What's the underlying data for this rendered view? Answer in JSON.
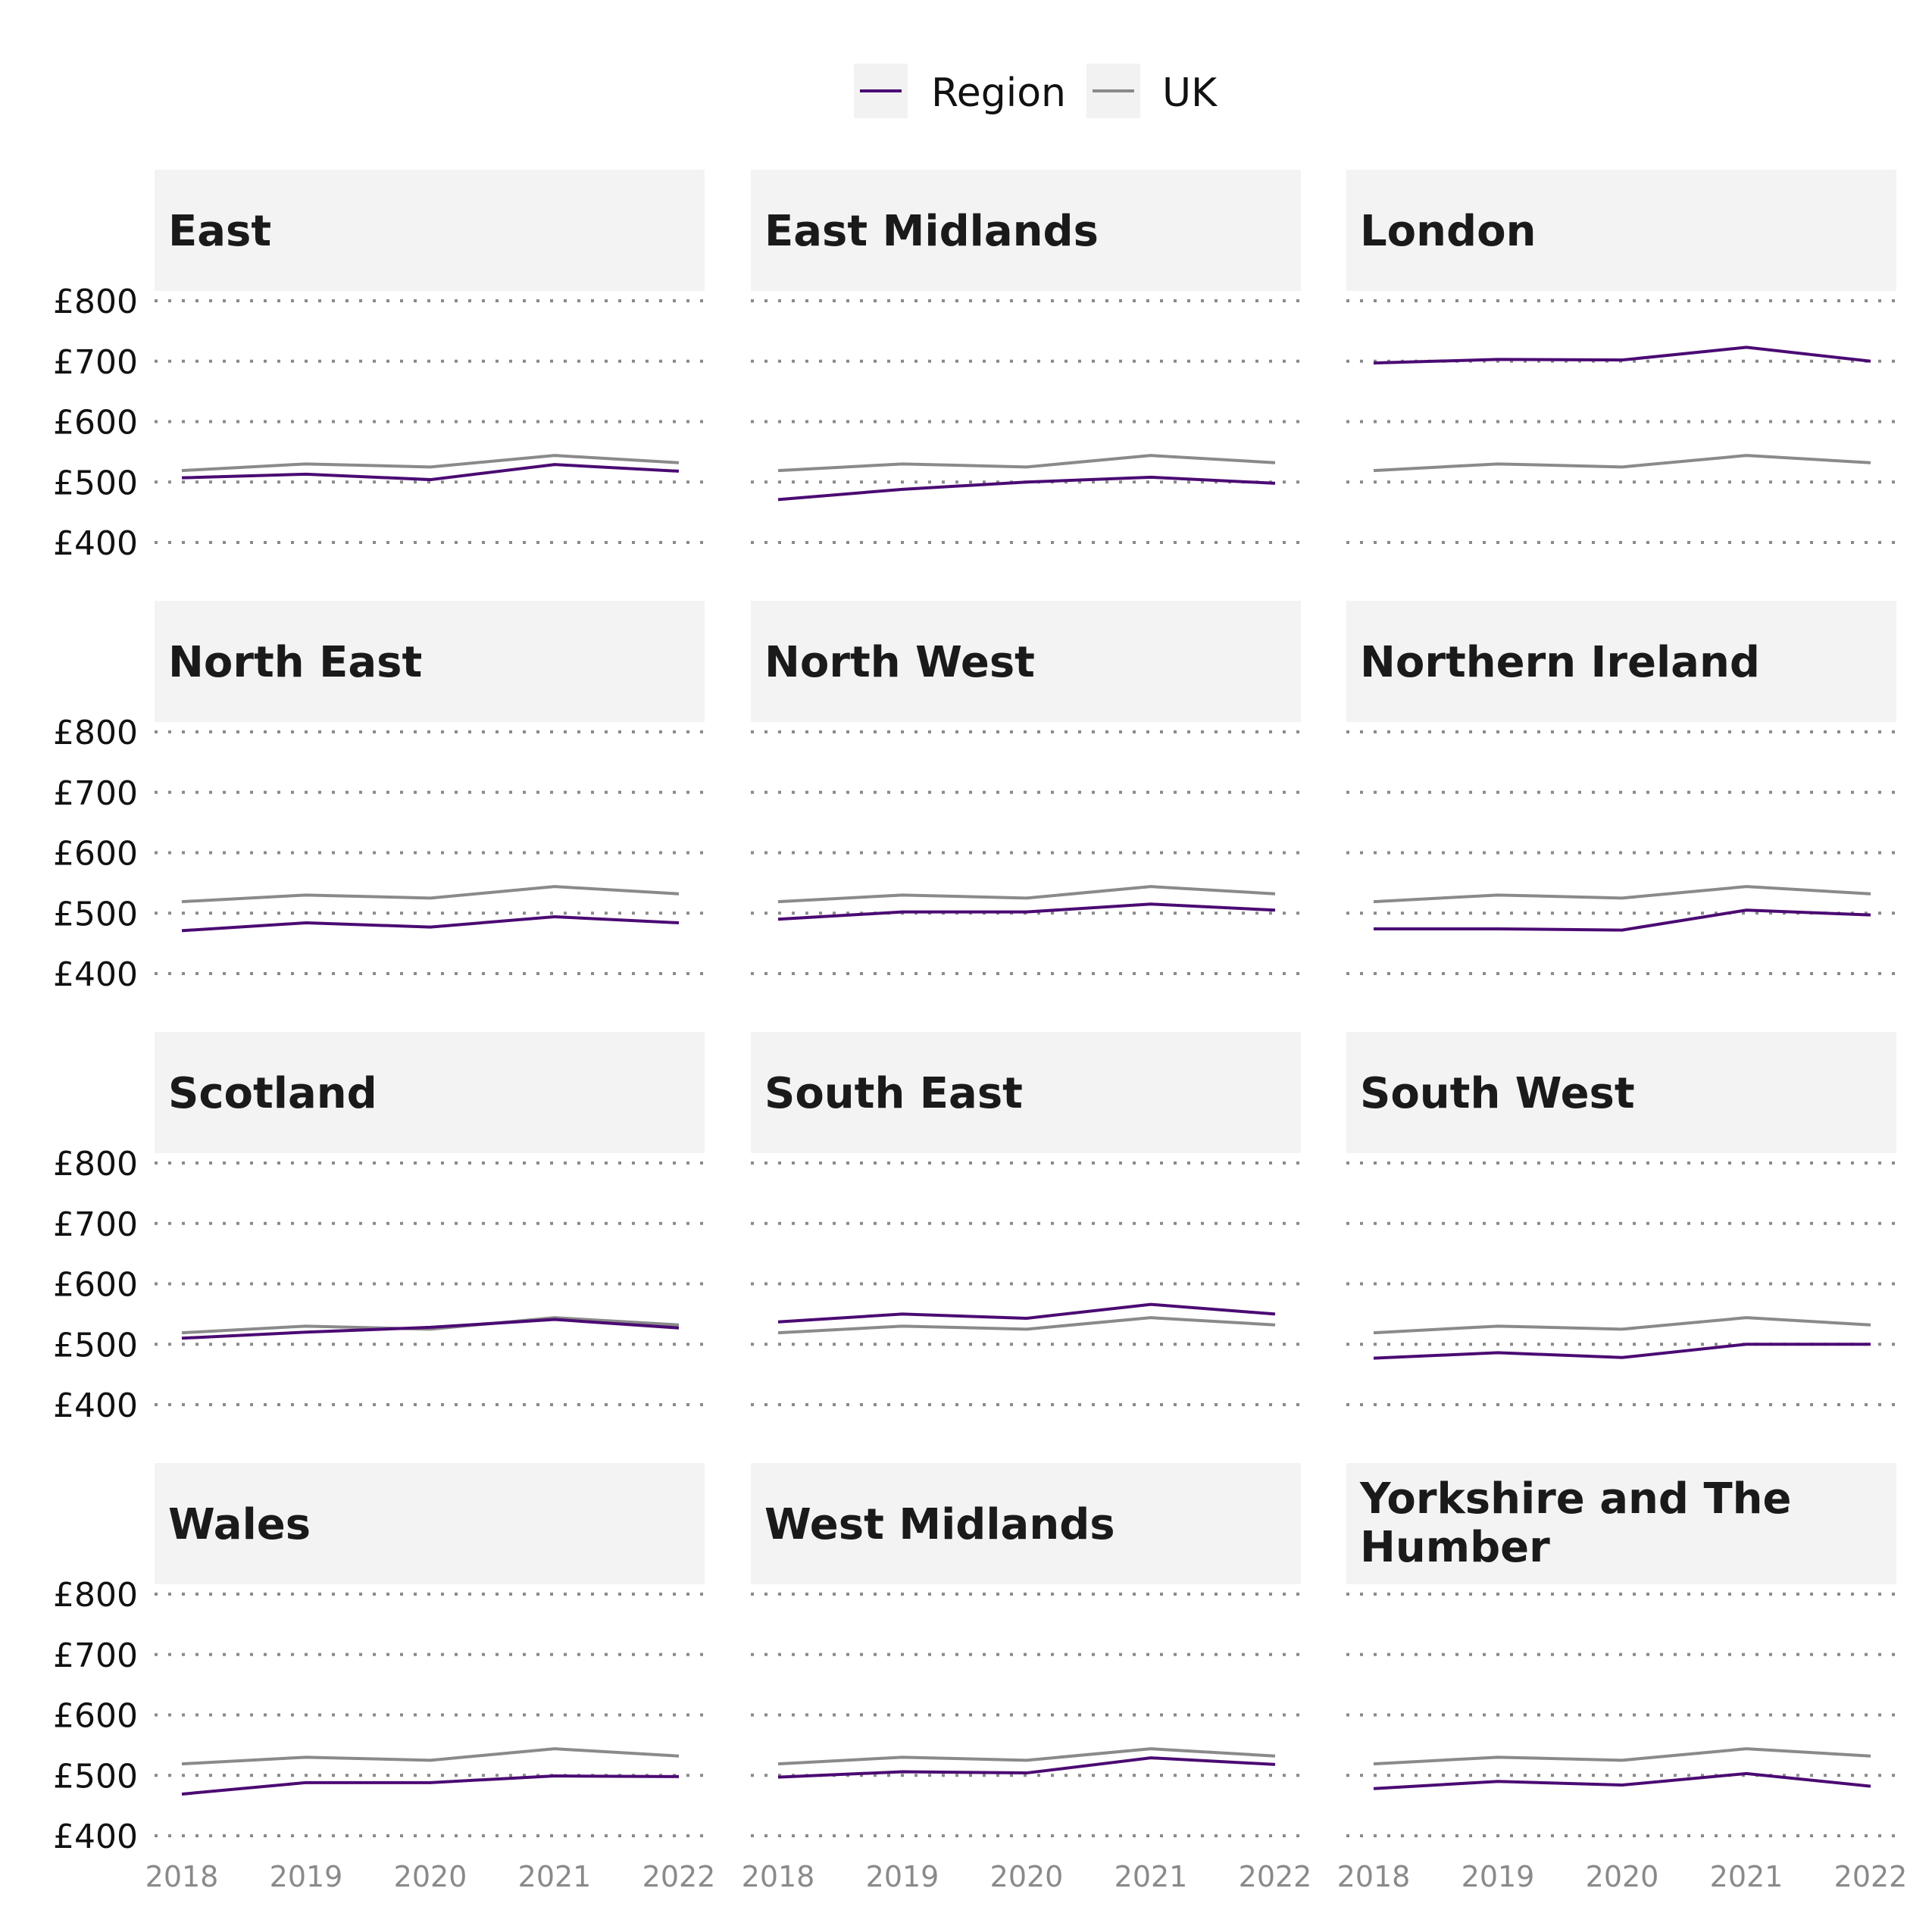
{
  "chart_data": {
    "type": "line",
    "layout": "facet-grid 4x3",
    "x": [
      "2018",
      "2019",
      "2020",
      "2021",
      "2022"
    ],
    "ylim": [
      400,
      800
    ],
    "y_ticks": [
      "£400",
      "£500",
      "£600",
      "£700",
      "£800"
    ],
    "y_tick_values": [
      400,
      500,
      600,
      700,
      800
    ],
    "grid": "horizontal dotted",
    "legend": {
      "placement": "top",
      "entries": [
        {
          "name": "Region",
          "color": "#4b0a73"
        },
        {
          "name": "UK",
          "color": "#8a8a8a"
        }
      ]
    },
    "uk_values": [
      519,
      530,
      525,
      544,
      532
    ],
    "panels": [
      {
        "title": "East",
        "values": [
          507,
          513,
          504,
          529,
          518
        ]
      },
      {
        "title": "East Midlands",
        "values": [
          471,
          488,
          500,
          508,
          498
        ]
      },
      {
        "title": "London",
        "values": [
          697,
          703,
          702,
          723,
          700
        ]
      },
      {
        "title": "North East",
        "values": [
          471,
          484,
          477,
          494,
          484
        ]
      },
      {
        "title": "North West",
        "values": [
          490,
          502,
          502,
          515,
          505
        ]
      },
      {
        "title": "Northern Ireland",
        "values": [
          474,
          474,
          472,
          505,
          497
        ]
      },
      {
        "title": "Scotland",
        "values": [
          510,
          520,
          528,
          541,
          527
        ]
      },
      {
        "title": "South East",
        "values": [
          537,
          550,
          543,
          566,
          550
        ]
      },
      {
        "title": "South West",
        "values": [
          477,
          486,
          478,
          500,
          500
        ]
      },
      {
        "title": "Wales",
        "values": [
          469,
          488,
          488,
          499,
          498
        ]
      },
      {
        "title": "West Midlands",
        "values": [
          497,
          506,
          504,
          529,
          518
        ]
      },
      {
        "title": "Yorkshire and The Humber",
        "title_lines": [
          "Yorkshire and The",
          "Humber"
        ],
        "values": [
          478,
          490,
          484,
          503,
          482
        ]
      }
    ]
  }
}
